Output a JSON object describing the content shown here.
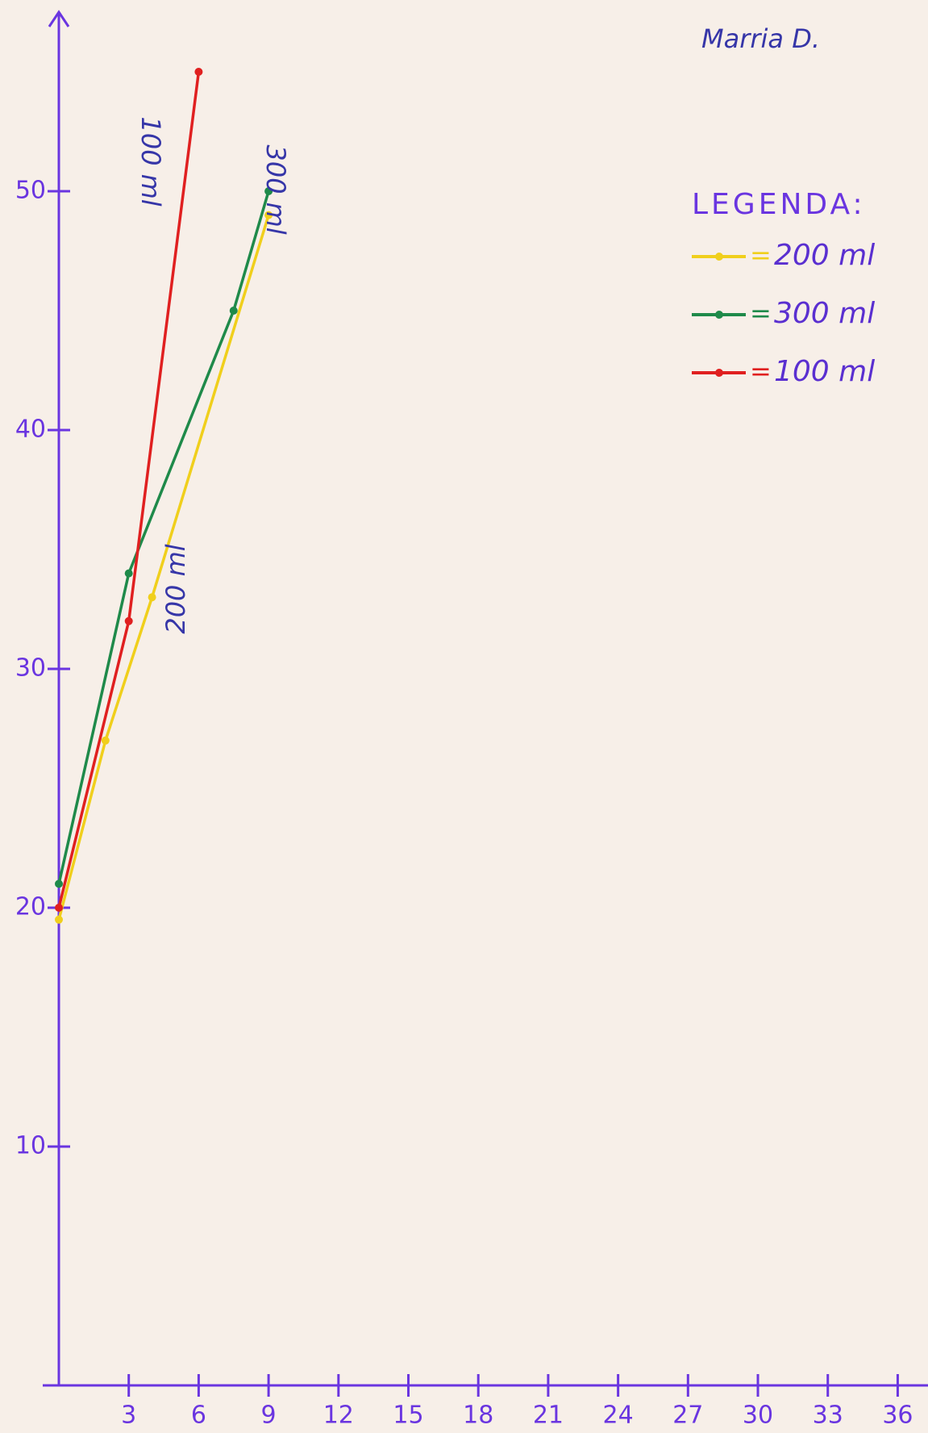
{
  "chart_data": {
    "type": "line",
    "author": "Marria D.",
    "legend_title": "LEGENDA:",
    "annotations": [
      {
        "text": "100 ml",
        "series": 2
      },
      {
        "text": "300 ml",
        "series": 1
      },
      {
        "text": "200 ml",
        "series": 0
      }
    ],
    "series": [
      {
        "name": "200 ml",
        "color": "#f0cf1c",
        "x": [
          0,
          2,
          4,
          9
        ],
        "values": [
          19.5,
          27,
          33,
          49
        ]
      },
      {
        "name": "300 ml",
        "color": "#1f8a4a",
        "x": [
          0,
          3,
          7.5,
          9
        ],
        "values": [
          21,
          34,
          45,
          50
        ]
      },
      {
        "name": "100 ml",
        "color": "#e02020",
        "x": [
          0,
          3,
          6
        ],
        "values": [
          20,
          32,
          55
        ]
      }
    ],
    "xlim": [
      0,
      37.3
    ],
    "ylim": [
      0,
      57.5
    ],
    "xticks": [
      3,
      6,
      9,
      12,
      15,
      18,
      21,
      24,
      27,
      30,
      33,
      36
    ],
    "yticks": [
      10,
      20,
      30,
      40,
      50
    ]
  }
}
